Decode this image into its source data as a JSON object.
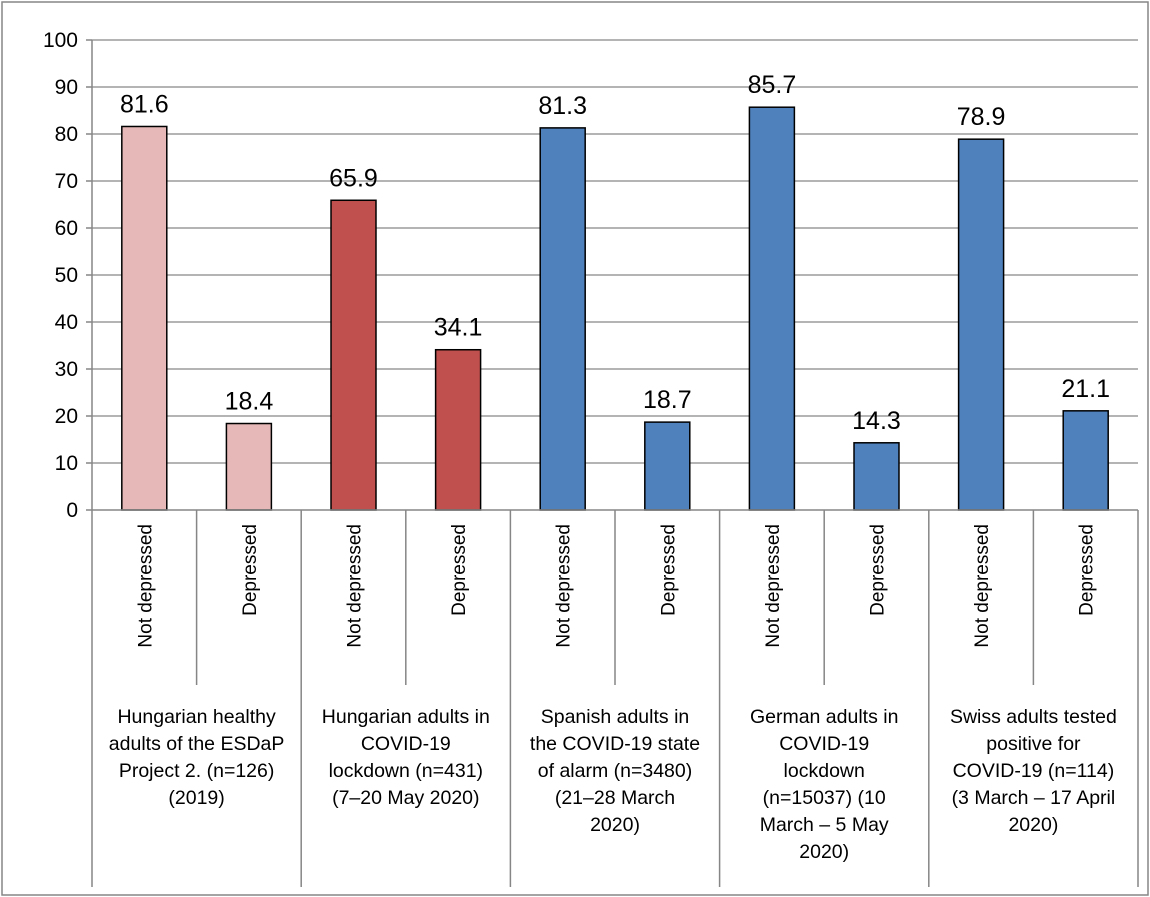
{
  "chart_data": {
    "type": "bar",
    "ylim": [
      0,
      100
    ],
    "yticks": [
      0,
      10,
      20,
      30,
      40,
      50,
      60,
      70,
      80,
      90,
      100
    ],
    "grid": true,
    "groups": [
      {
        "label_lines": [
          "Hungarian healthy",
          "adults of the ESDaP",
          "Project 2. (n=126)",
          "(2019)"
        ],
        "color": "#e6b9b8",
        "bars": [
          {
            "category": "Not depressed",
            "value": 81.6,
            "label": "81.6"
          },
          {
            "category": "Depressed",
            "value": 18.4,
            "label": "18.4"
          }
        ]
      },
      {
        "label_lines": [
          "Hungarian adults in",
          "COVID-19",
          "lockdown (n=431)",
          "(7–20 May 2020)"
        ],
        "color": "#c0504d",
        "bars": [
          {
            "category": "Not depressed",
            "value": 65.9,
            "label": "65.9"
          },
          {
            "category": "Depressed",
            "value": 34.1,
            "label": "34.1"
          }
        ]
      },
      {
        "label_lines": [
          "Spanish adults in",
          "the COVID-19 state",
          "of alarm (n=3480)",
          "(21–28 March",
          "2020)"
        ],
        "color": "#4f81bd",
        "bars": [
          {
            "category": "Not depressed",
            "value": 81.3,
            "label": "81.3"
          },
          {
            "category": "Depressed",
            "value": 18.7,
            "label": "18.7"
          }
        ]
      },
      {
        "label_lines": [
          "German adults in",
          "COVID-19",
          "lockdown",
          "(n=15037) (10",
          "March – 5 May",
          "2020)"
        ],
        "color": "#4f81bd",
        "bars": [
          {
            "category": "Not depressed",
            "value": 85.7,
            "label": "85.7"
          },
          {
            "category": "Depressed",
            "value": 14.3,
            "label": "14.3"
          }
        ]
      },
      {
        "label_lines": [
          "Swiss adults tested",
          "positive for",
          "COVID-19 (n=114)",
          "(3 March – 17 April",
          "2020)"
        ],
        "color": "#4f81bd",
        "bars": [
          {
            "category": "Not depressed",
            "value": 78.9,
            "label": "78.9"
          },
          {
            "category": "Depressed",
            "value": 21.1,
            "label": "21.1"
          }
        ]
      }
    ]
  }
}
